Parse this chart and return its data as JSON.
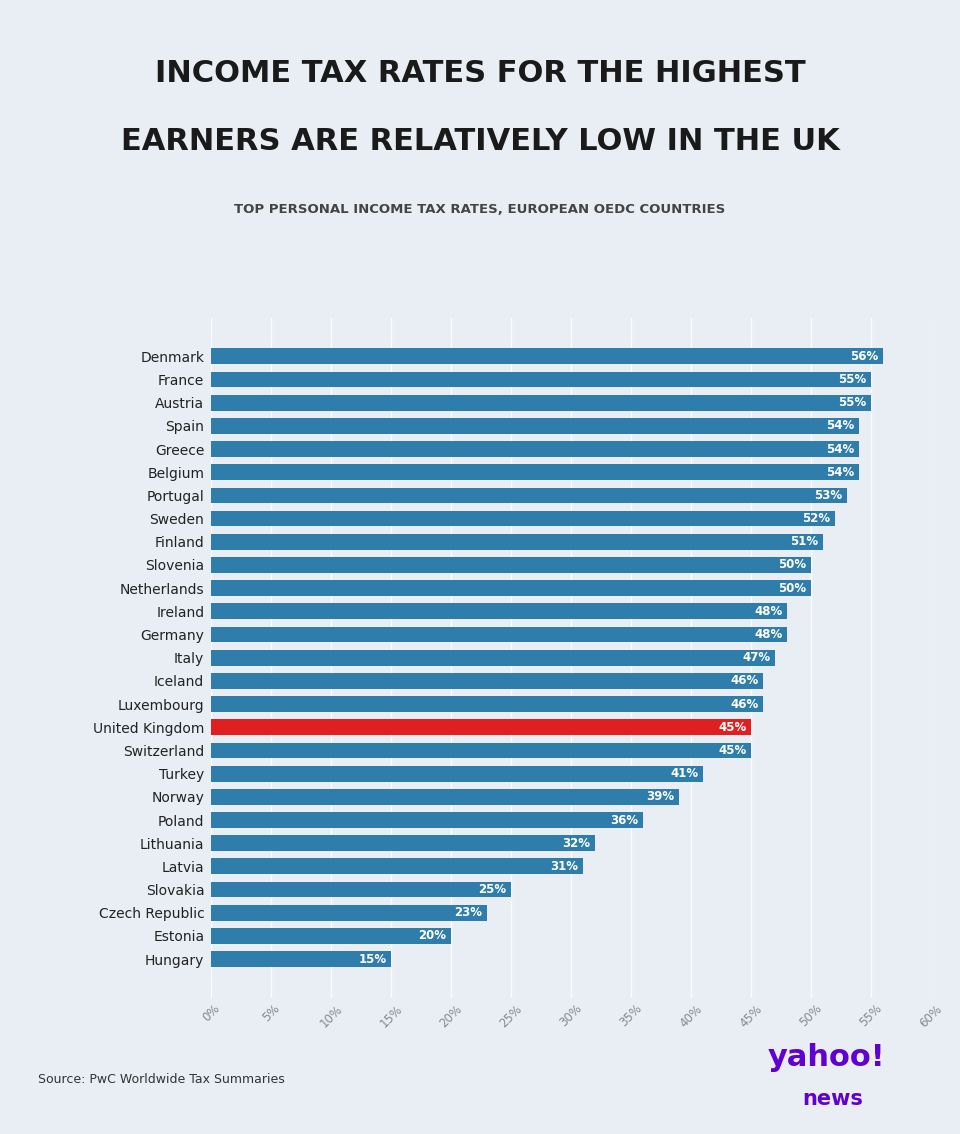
{
  "title_line1": "INCOME TAX RATES FOR THE HIGHEST",
  "title_line2": "EARNERS ARE RELATIVELY LOW IN THE UK",
  "subtitle": "TOP PERSONAL INCOME TAX RATES, EUROPEAN OEDC COUNTRIES",
  "source": "Source: PwC Worldwide Tax Summaries",
  "background_color": "#e8eef4",
  "bar_color": "#2e7daa",
  "highlight_color": "#e02020",
  "title_color": "#1a1a1a",
  "subtitle_color": "#444444",
  "countries": [
    "Denmark",
    "France",
    "Austria",
    "Spain",
    "Greece",
    "Belgium",
    "Portugal",
    "Sweden",
    "Finland",
    "Slovenia",
    "Netherlands",
    "Ireland",
    "Germany",
    "Italy",
    "Iceland",
    "Luxembourg",
    "United Kingdom",
    "Switzerland",
    "Turkey",
    "Norway",
    "Poland",
    "Lithuania",
    "Latvia",
    "Slovakia",
    "Czech Republic",
    "Estonia",
    "Hungary"
  ],
  "values": [
    56,
    55,
    55,
    54,
    54,
    54,
    53,
    52,
    51,
    50,
    50,
    48,
    48,
    47,
    46,
    46,
    45,
    45,
    41,
    39,
    36,
    32,
    31,
    25,
    23,
    20,
    15
  ],
  "highlight_country": "United Kingdom",
  "xlim": [
    0,
    60
  ],
  "xticks": [
    0,
    5,
    10,
    15,
    20,
    25,
    30,
    35,
    40,
    45,
    50,
    55,
    60
  ],
  "xtick_labels": [
    "0%",
    "5%",
    "10%",
    "15%",
    "20%",
    "25%",
    "30%",
    "35%",
    "40%",
    "45%",
    "50%",
    "55%",
    "60%"
  ]
}
